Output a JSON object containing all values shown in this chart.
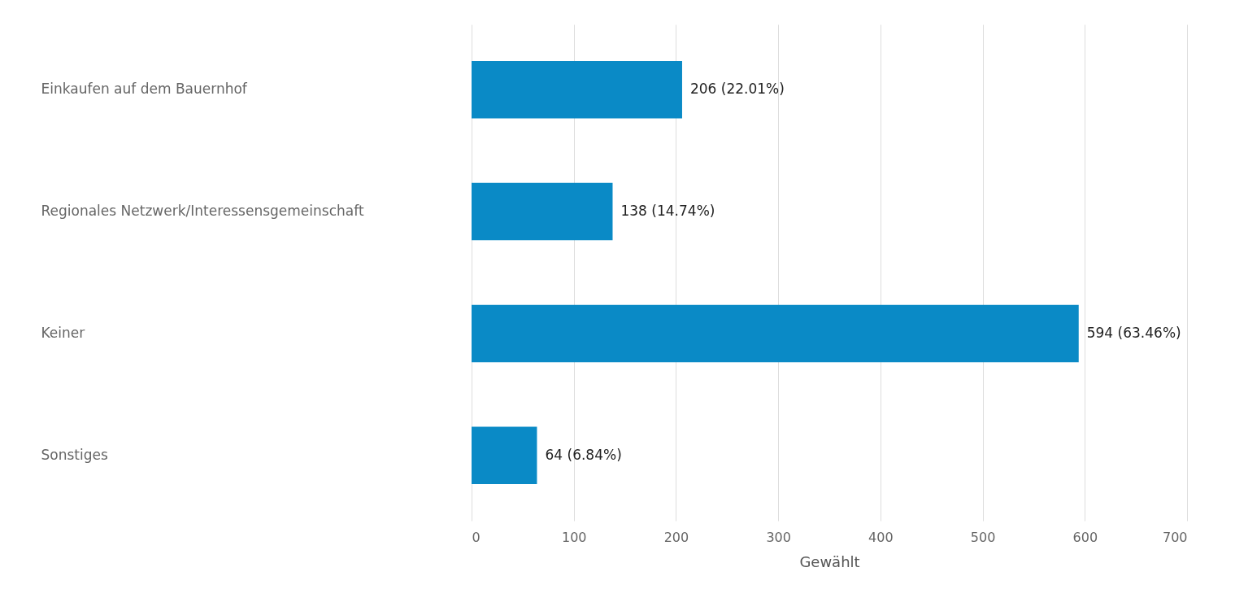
{
  "chart_data": {
    "type": "bar",
    "orientation": "horizontal",
    "xlabel": "Gewählt",
    "categories": [
      "Einkaufen auf dem Bauernhof",
      "Regionales Netzwerk/Interessensgemeinschaft",
      "Keiner",
      "Sonstiges"
    ],
    "values": [
      206,
      138,
      594,
      64
    ],
    "color": "#0a8ac6",
    "value_labels": [
      "206 (22.01%)",
      "138 (14.74%)",
      "594 (63.46%)",
      "64 (6.84%)"
    ],
    "xlim": [
      0,
      700
    ],
    "xticks": [
      0,
      100,
      200,
      300,
      400,
      500,
      600,
      700
    ],
    "grid": "x"
  }
}
